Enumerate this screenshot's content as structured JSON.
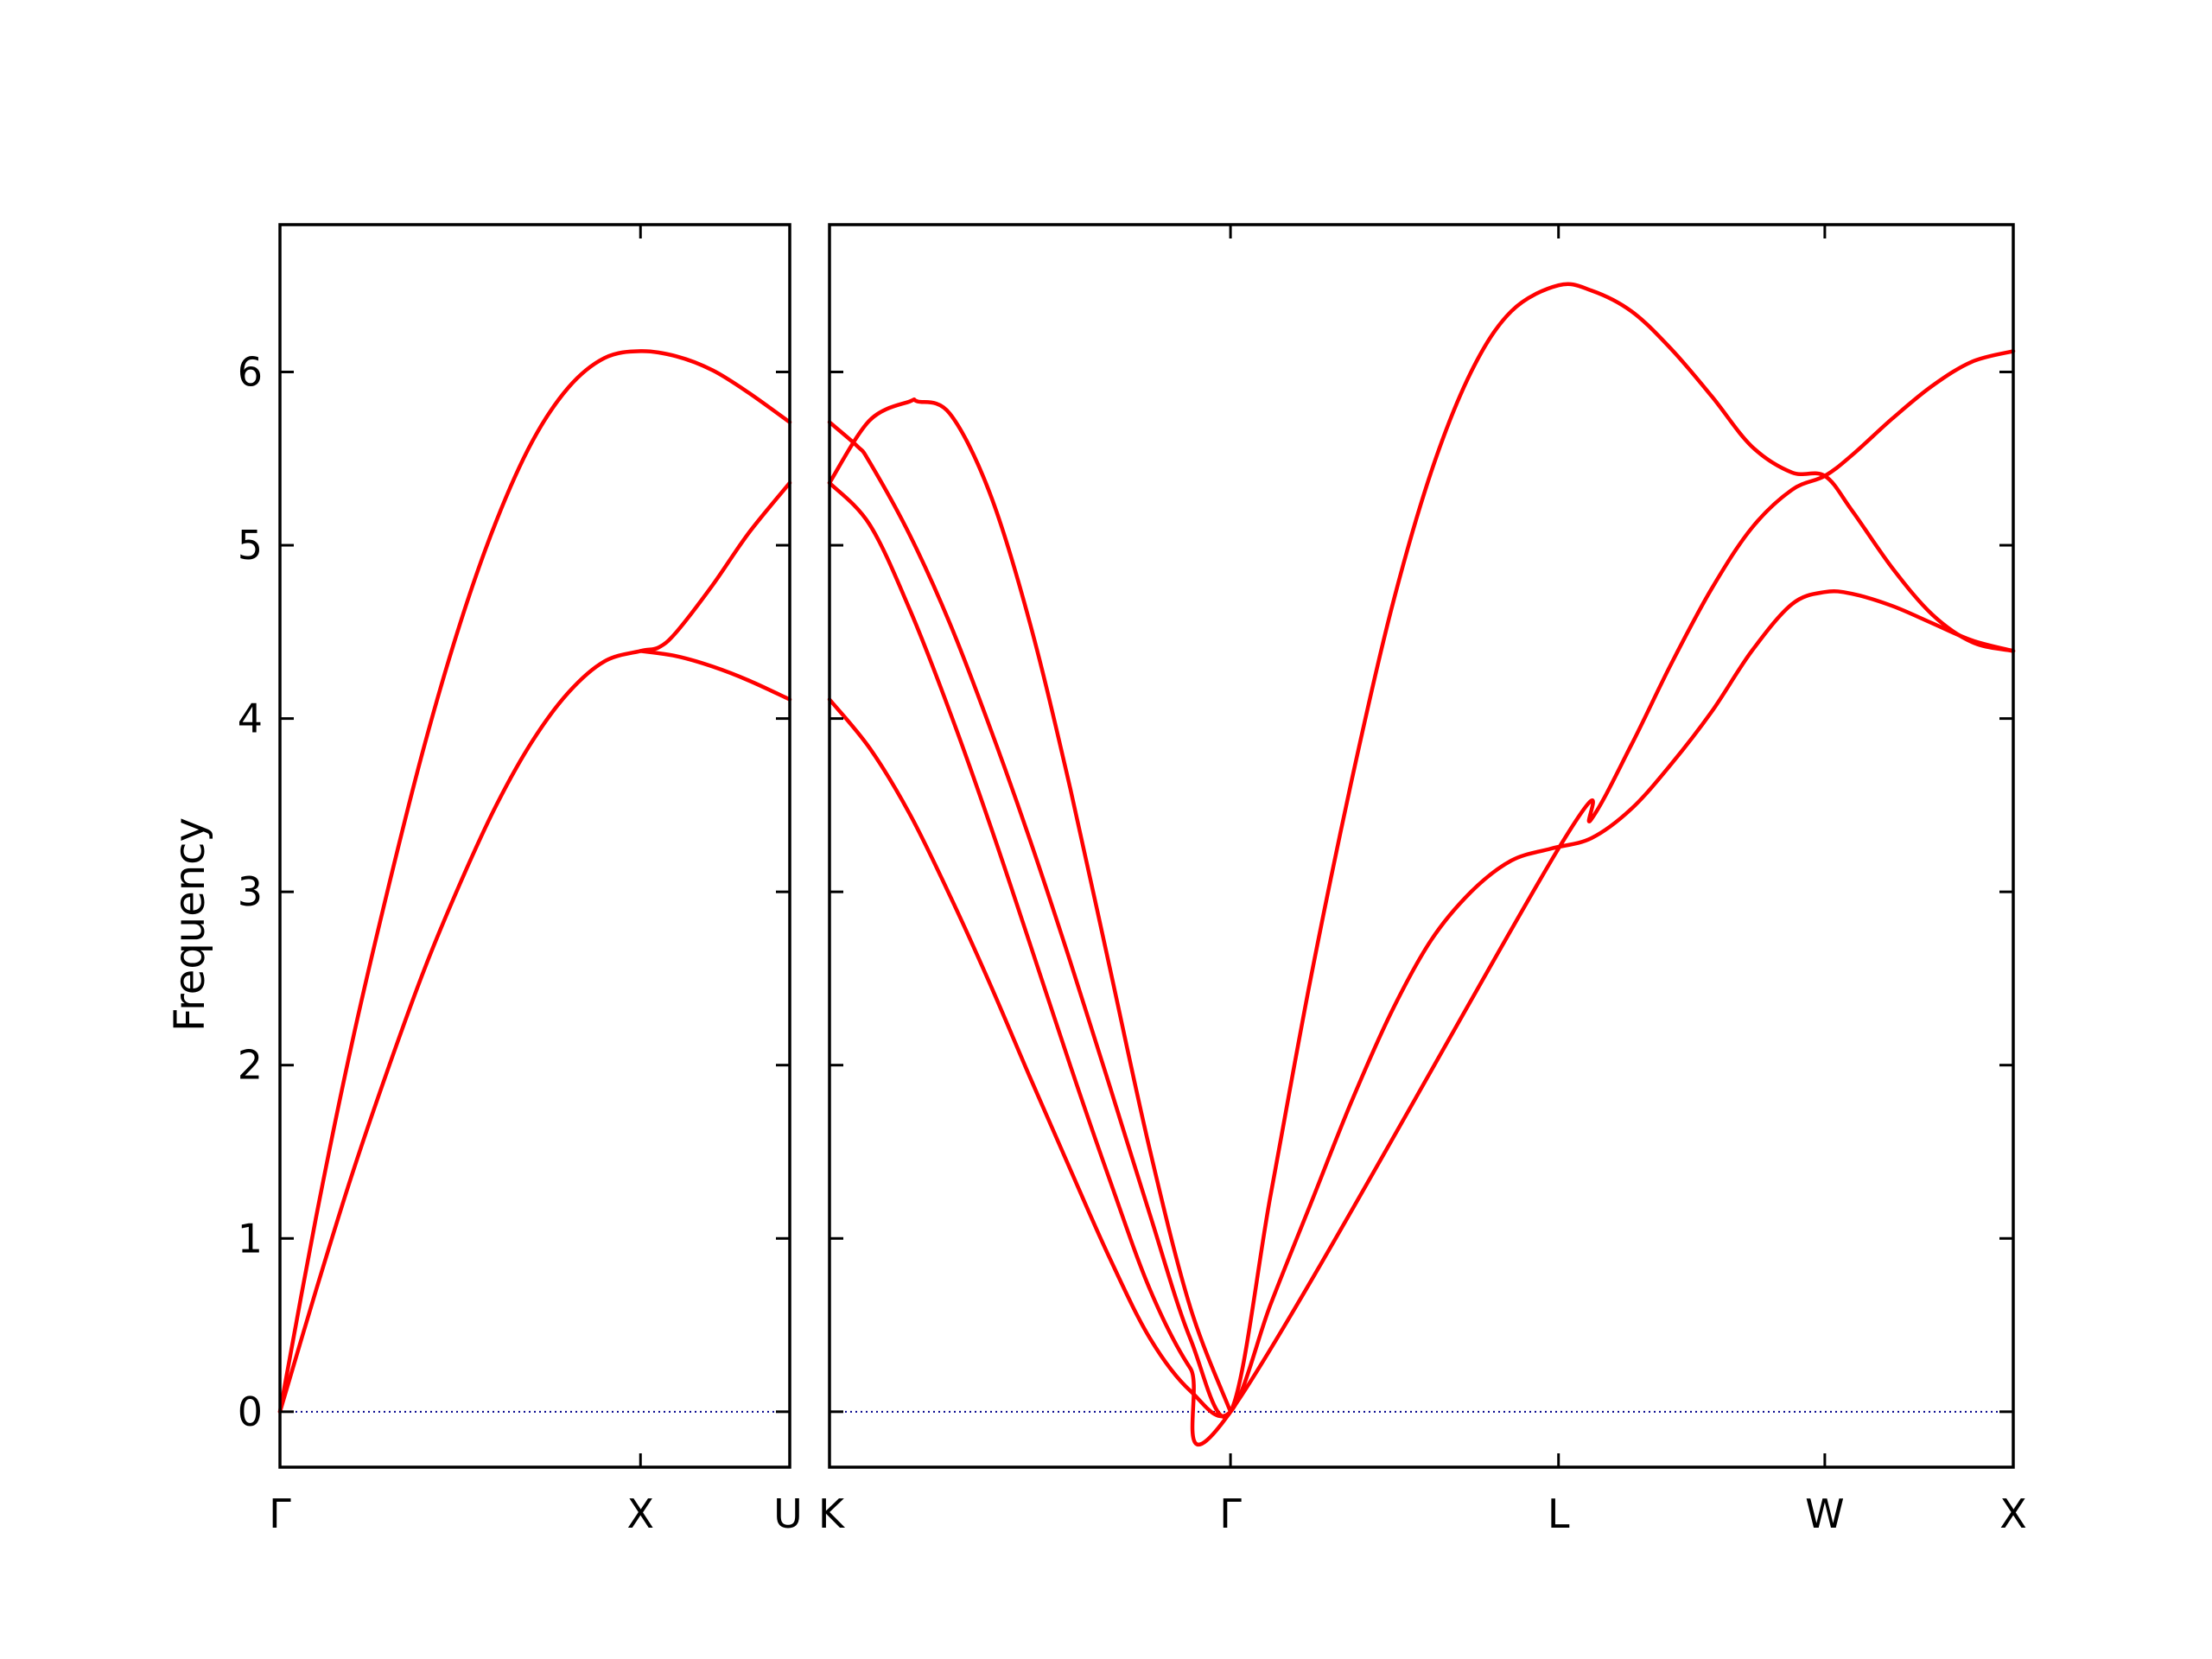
{
  "chart_data": {
    "type": "line",
    "title": "",
    "ylabel": "Frequency",
    "ylim": [
      -0.32,
      6.85
    ],
    "yticks": [
      0,
      1,
      2,
      3,
      4,
      5,
      6
    ],
    "grid": false,
    "legend": "none",
    "colors": {
      "band": "#ff0000",
      "zero_line": "#00008b",
      "axes": "#000000"
    },
    "panels": [
      {
        "xlim": [
          0,
          1.414
        ],
        "xticks": [
          {
            "x": 0,
            "label": "Γ"
          },
          {
            "x": 1.0,
            "label": "X"
          },
          {
            "x": 1.414,
            "label": "U"
          }
        ],
        "series": [
          {
            "name": "",
            "x": [
              0,
              0.1,
              0.2,
              0.3,
              0.4,
              0.5,
              0.6,
              0.7,
              0.8,
              0.9,
              1.0,
              1.05,
              1.1,
              1.2,
              1.3,
              1.414
            ],
            "y": [
              0,
              0.7,
              1.37,
              1.98,
              2.55,
              3.05,
              3.5,
              3.87,
              4.15,
              4.33,
              4.39,
              4.41,
              4.5,
              4.77,
              5.07,
              5.36
            ]
          },
          {
            "name": "",
            "x": [
              0,
              0.1,
              0.2,
              0.3,
              0.4,
              0.5,
              0.6,
              0.7,
              0.8,
              0.9,
              1.0,
              1.1,
              1.2,
              1.3,
              1.414
            ],
            "y": [
              0,
              1.12,
              2.13,
              3.02,
              3.84,
              4.55,
              5.14,
              5.6,
              5.91,
              6.08,
              6.12,
              6.09,
              6.01,
              5.88,
              5.71
            ]
          },
          {
            "name": "",
            "x": [
              1.0,
              1.1,
              1.2,
              1.3,
              1.414
            ],
            "y": [
              4.39,
              4.36,
              4.3,
              4.22,
              4.11
            ]
          }
        ]
      },
      {
        "xlim": [
          0,
          2.952
        ],
        "xticks": [
          {
            "x": 0,
            "label": "K"
          },
          {
            "x": 1.0,
            "label": "Γ"
          },
          {
            "x": 1.818,
            "label": "L"
          },
          {
            "x": 2.482,
            "label": "W"
          },
          {
            "x": 2.952,
            "label": "X"
          }
        ],
        "series": [
          {
            "name": "",
            "x": [
              0,
              0.1,
              0.2,
              0.3,
              0.4,
              0.5,
              0.6,
              0.7,
              0.8,
              0.9,
              1.0,
              1.1,
              1.2,
              1.3,
              1.4,
              1.5,
              1.6,
              1.7,
              1.8,
              1.9,
              2.0,
              2.1,
              2.2,
              2.3,
              2.4,
              2.482,
              2.55,
              2.65,
              2.75,
              2.85,
              2.952
            ],
            "y": [
              4.11,
              3.83,
              3.45,
              2.98,
              2.47,
              1.93,
              1.4,
              0.88,
              0.42,
              0.12,
              0,
              0.62,
              1.2,
              1.78,
              2.3,
              2.72,
              3.0,
              3.18,
              3.25,
              3.31,
              3.48,
              3.74,
              4.04,
              4.39,
              4.66,
              4.73,
              4.72,
              4.65,
              4.55,
              4.45,
              4.39
            ]
          },
          {
            "name": "",
            "x": [
              0,
              0.1,
              0.2,
              0.3,
              0.4,
              0.5,
              0.6,
              0.7,
              0.8,
              0.9,
              1.0,
              1.818,
              1.9,
              2.0,
              2.1,
              2.2,
              2.3,
              2.4,
              2.482,
              2.55,
              2.65,
              2.75,
              2.85,
              2.952
            ],
            "y": [
              5.36,
              5.12,
              4.63,
              4.04,
              3.39,
              2.7,
              2.0,
              1.33,
              0.7,
              0.25,
              0,
              3.25,
              3.42,
              3.85,
              4.32,
              4.75,
              5.1,
              5.32,
              5.4,
              5.52,
              5.73,
              5.92,
              6.06,
              6.12
            ]
          },
          {
            "name": "",
            "x": [
              0,
              0.07,
              0.1,
              0.2,
              0.3,
              0.4,
              0.5,
              0.6,
              0.7,
              0.8,
              0.9,
              1.0,
              1.1,
              1.2,
              1.3,
              1.4,
              1.5,
              1.6,
              1.7,
              1.818,
              1.9,
              2.0,
              2.1,
              2.2,
              2.3,
              2.4,
              2.482,
              2.55,
              2.65,
              2.75,
              2.85,
              2.952
            ],
            "y": [
              5.71,
              5.57,
              5.48,
              5.06,
              4.55,
              3.95,
              3.3,
              2.6,
              1.87,
              1.13,
              0.42,
              0,
              1.25,
              2.5,
              3.62,
              4.62,
              5.42,
              6.0,
              6.35,
              6.5,
              6.47,
              6.35,
              6.13,
              5.86,
              5.57,
              5.42,
              5.4,
              5.2,
              4.87,
              4.6,
              4.44,
              4.39
            ]
          },
          {
            "name": "",
            "x": [
              0,
              0.1,
              0.2,
              0.22,
              0.3,
              0.4,
              0.5,
              0.6,
              0.7,
              0.8,
              0.9,
              1.0
            ],
            "y": [
              5.36,
              5.72,
              5.83,
              5.83,
              5.76,
              5.3,
              4.55,
              3.6,
              2.55,
              1.5,
              0.6,
              0
            ]
          }
        ]
      }
    ]
  }
}
